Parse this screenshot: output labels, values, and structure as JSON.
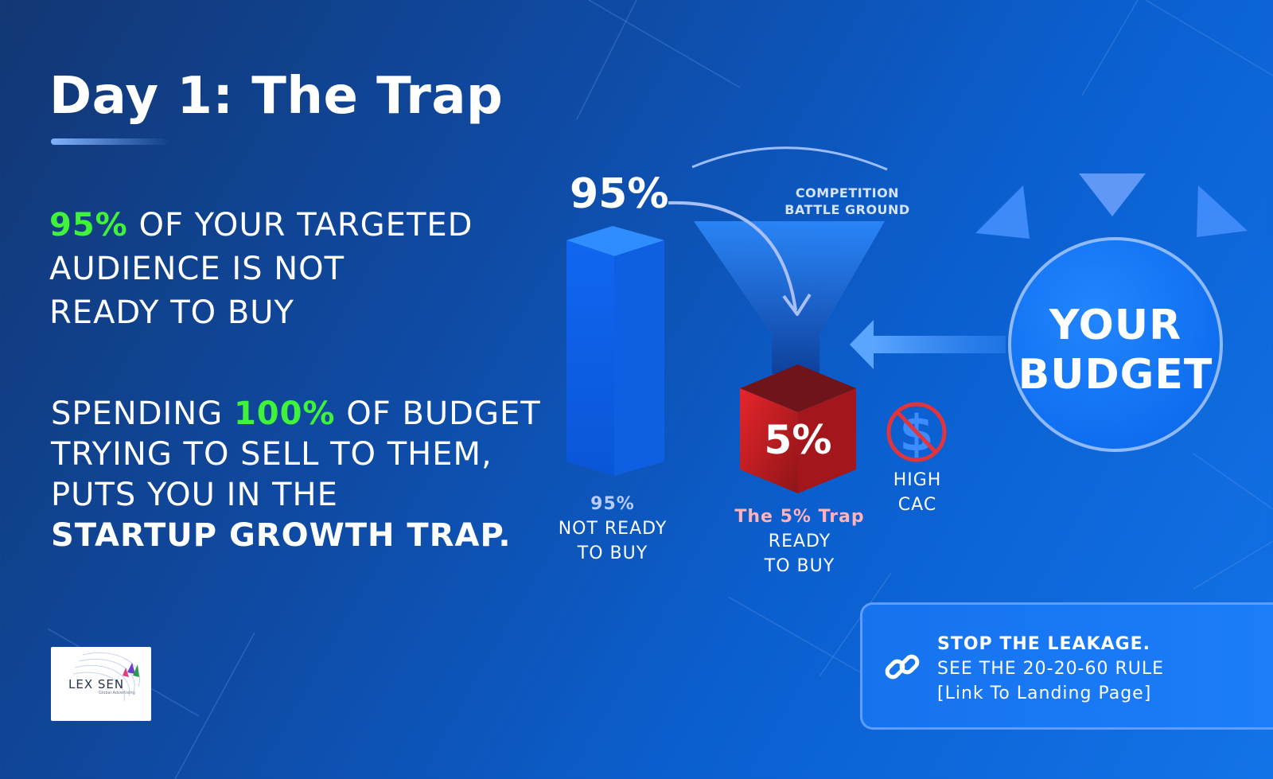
{
  "title": "Day 1: The Trap",
  "statement1": {
    "highlight": "95%",
    "line1_rest": " OF YOUR TARGETED",
    "line2": "AUDIENCE IS NOT",
    "line3": "READY TO BUY"
  },
  "statement2": {
    "line1_start": "SPENDING ",
    "highlight": "100%",
    "line1_end": " OF BUDGET",
    "line2": "TRYING TO SELL TO THEM,",
    "line3": "PUTS YOU IN THE",
    "line4": "STARTUP GROWTH TRAP."
  },
  "diagram": {
    "bar_pct_label": "95%",
    "bar_caption": {
      "pct": "95%",
      "line1": "NOT READY",
      "line2": "TO BUY"
    },
    "funnel_label": {
      "line1": "COMPETITION",
      "line2": "BATTLE GROUND"
    },
    "cube_label": "5%",
    "cube_caption": {
      "trap": "The 5% Trap",
      "line1": "READY",
      "line2": "TO BUY"
    },
    "cac_label": {
      "line1": "HIGH",
      "line2": "CAC"
    },
    "budget": {
      "line1": "YOUR",
      "line2": "BUDGET"
    },
    "segments": [
      {
        "share_pct": 95,
        "state": "not ready to buy"
      },
      {
        "share_pct": 5,
        "state": "ready to buy"
      }
    ]
  },
  "cta": {
    "line1": "STOP THE LEAKAGE.",
    "line2": "SEE THE 20-20-60 RULE",
    "line3": "[Link To Landing Page]"
  },
  "logo": {
    "text": "LEX SEN",
    "sub": "Global Advertising"
  },
  "colors": {
    "highlight_green": "#3ff23a",
    "cube_red": "#c41f24",
    "accent_blue": "#1c7dfa"
  },
  "icons": {
    "cac": "no-dollar-icon",
    "cta": "link-chain-icon"
  }
}
